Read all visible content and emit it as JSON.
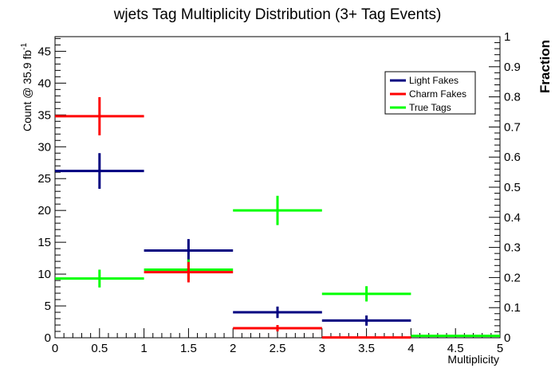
{
  "chart_data": {
    "type": "scatter",
    "title": "wjets Tag Multiplicity Distribution (3+ Tag Events)",
    "xlabel": "Multiplicity",
    "ylabel": "Count @ 35.9 fb",
    "ylabel_superscript": "-1",
    "y2label": "Fraction",
    "xlim": [
      0,
      5
    ],
    "ylim": [
      0,
      47.3
    ],
    "y2lim": [
      0,
      1
    ],
    "x_ticks": [
      "0",
      "0.5",
      "1",
      "1.5",
      "2",
      "2.5",
      "3",
      "3.5",
      "4",
      "4.5",
      "5"
    ],
    "y_ticks": [
      "0",
      "5",
      "10",
      "15",
      "20",
      "25",
      "30",
      "35",
      "40",
      "45"
    ],
    "y2_ticks": [
      "0",
      "0.1",
      "0.2",
      "0.3",
      "0.4",
      "0.5",
      "0.6",
      "0.7",
      "0.8",
      "0.9",
      "1"
    ],
    "legend_position": "top-right",
    "bin_edges": [
      0,
      1,
      2,
      3,
      4,
      5
    ],
    "series": [
      {
        "name": "Light Fakes",
        "color": "#000080",
        "x": [
          0.5,
          1.5,
          2.5,
          3.5
        ],
        "y": [
          26.2,
          13.7,
          4.0,
          2.7
        ],
        "yerr": [
          2.8,
          1.8,
          0.9,
          0.8
        ]
      },
      {
        "name": "Charm Fakes",
        "color": "#ff0000",
        "x": [
          0.5,
          1.5,
          2.5,
          3.5
        ],
        "y": [
          34.8,
          10.3,
          1.5,
          0.05
        ],
        "yerr": [
          3.0,
          1.6,
          0.5,
          0.0
        ]
      },
      {
        "name": "True Tags",
        "color": "#00ff00",
        "x": [
          0.5,
          1.5,
          2.5,
          3.5,
          4.5
        ],
        "y": [
          9.3,
          10.7,
          20.0,
          6.9,
          0.3
        ],
        "yerr": [
          1.4,
          1.6,
          2.3,
          1.2,
          0.1
        ]
      }
    ]
  }
}
